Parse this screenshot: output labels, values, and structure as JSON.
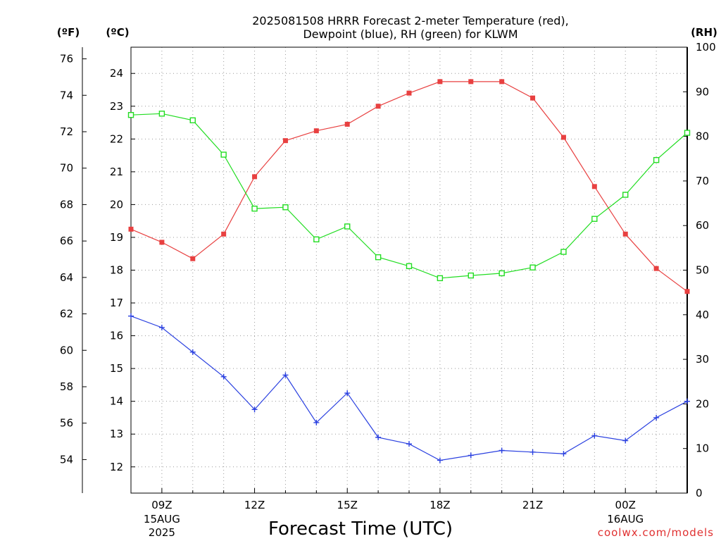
{
  "title_line1": "2025081508 HRRR Forecast 2-meter Temperature (red),",
  "title_line2": "Dewpoint (blue), RH (green) for KLWM",
  "unit_f": "(ºF)",
  "unit_c": "(ºC)",
  "unit_rh": "(RH)",
  "xlabel": "Forecast Time (UTC)",
  "credit": "coolwx.com/models",
  "colors": {
    "temperature": "#e84040",
    "dewpoint": "#2a40e0",
    "rh": "#22dd22",
    "axis": "#000000",
    "grid": "#999999"
  },
  "chart_data": {
    "type": "line",
    "x_hours_utc": [
      8,
      9,
      10,
      11,
      12,
      13,
      14,
      15,
      16,
      17,
      18,
      19,
      20,
      21,
      22,
      23,
      24,
      25,
      26
    ],
    "x_ticks": [
      {
        "hour": 9,
        "label": "09Z",
        "sub1": "15AUG",
        "sub2": "2025"
      },
      {
        "hour": 12,
        "label": "12Z",
        "sub1": "",
        "sub2": ""
      },
      {
        "hour": 15,
        "label": "15Z",
        "sub1": "",
        "sub2": ""
      },
      {
        "hour": 18,
        "label": "18Z",
        "sub1": "",
        "sub2": ""
      },
      {
        "hour": 21,
        "label": "21Z",
        "sub1": "",
        "sub2": ""
      },
      {
        "hour": 24,
        "label": "00Z",
        "sub1": "16AUG",
        "sub2": ""
      }
    ],
    "xlim": [
      8,
      26
    ],
    "y_celsius_lim": [
      11.2,
      24.8
    ],
    "y_celsius_ticks": [
      "12",
      "13",
      "14",
      "15",
      "16",
      "17",
      "18",
      "19",
      "20",
      "21",
      "22",
      "23",
      "24"
    ],
    "y_fahrenheit_ticks": [
      "54",
      "56",
      "58",
      "60",
      "62",
      "64",
      "66",
      "68",
      "70",
      "72",
      "74",
      "76"
    ],
    "y_rh_lim": [
      0,
      100
    ],
    "y_rh_ticks": [
      "0",
      "10",
      "20",
      "30",
      "40",
      "50",
      "60",
      "70",
      "80",
      "90",
      "100"
    ],
    "grid": true,
    "series": [
      {
        "name": "Temperature",
        "units": "°C",
        "axis": "celsius",
        "marker": "filled-square",
        "values": [
          19.25,
          18.85,
          18.35,
          19.1,
          20.85,
          21.95,
          22.25,
          22.45,
          23.0,
          23.4,
          23.75,
          23.75,
          23.75,
          23.25,
          22.05,
          20.55,
          19.1,
          18.05,
          17.35
        ]
      },
      {
        "name": "Dewpoint",
        "units": "°C",
        "axis": "celsius",
        "marker": "plus",
        "values": [
          16.6,
          16.25,
          15.5,
          14.75,
          13.75,
          14.8,
          13.35,
          14.25,
          12.9,
          12.7,
          12.2,
          12.35,
          12.5,
          12.45,
          12.4,
          12.95,
          12.8,
          13.5,
          14.0
        ]
      },
      {
        "name": "RH",
        "units": "%",
        "axis": "rh",
        "marker": "open-square",
        "values": [
          84.8,
          85.1,
          83.6,
          75.9,
          63.8,
          64.1,
          56.9,
          59.8,
          52.9,
          50.9,
          48.2,
          48.8,
          49.3,
          50.6,
          54.1,
          61.5,
          66.9,
          74.7,
          80.8
        ]
      }
    ]
  }
}
